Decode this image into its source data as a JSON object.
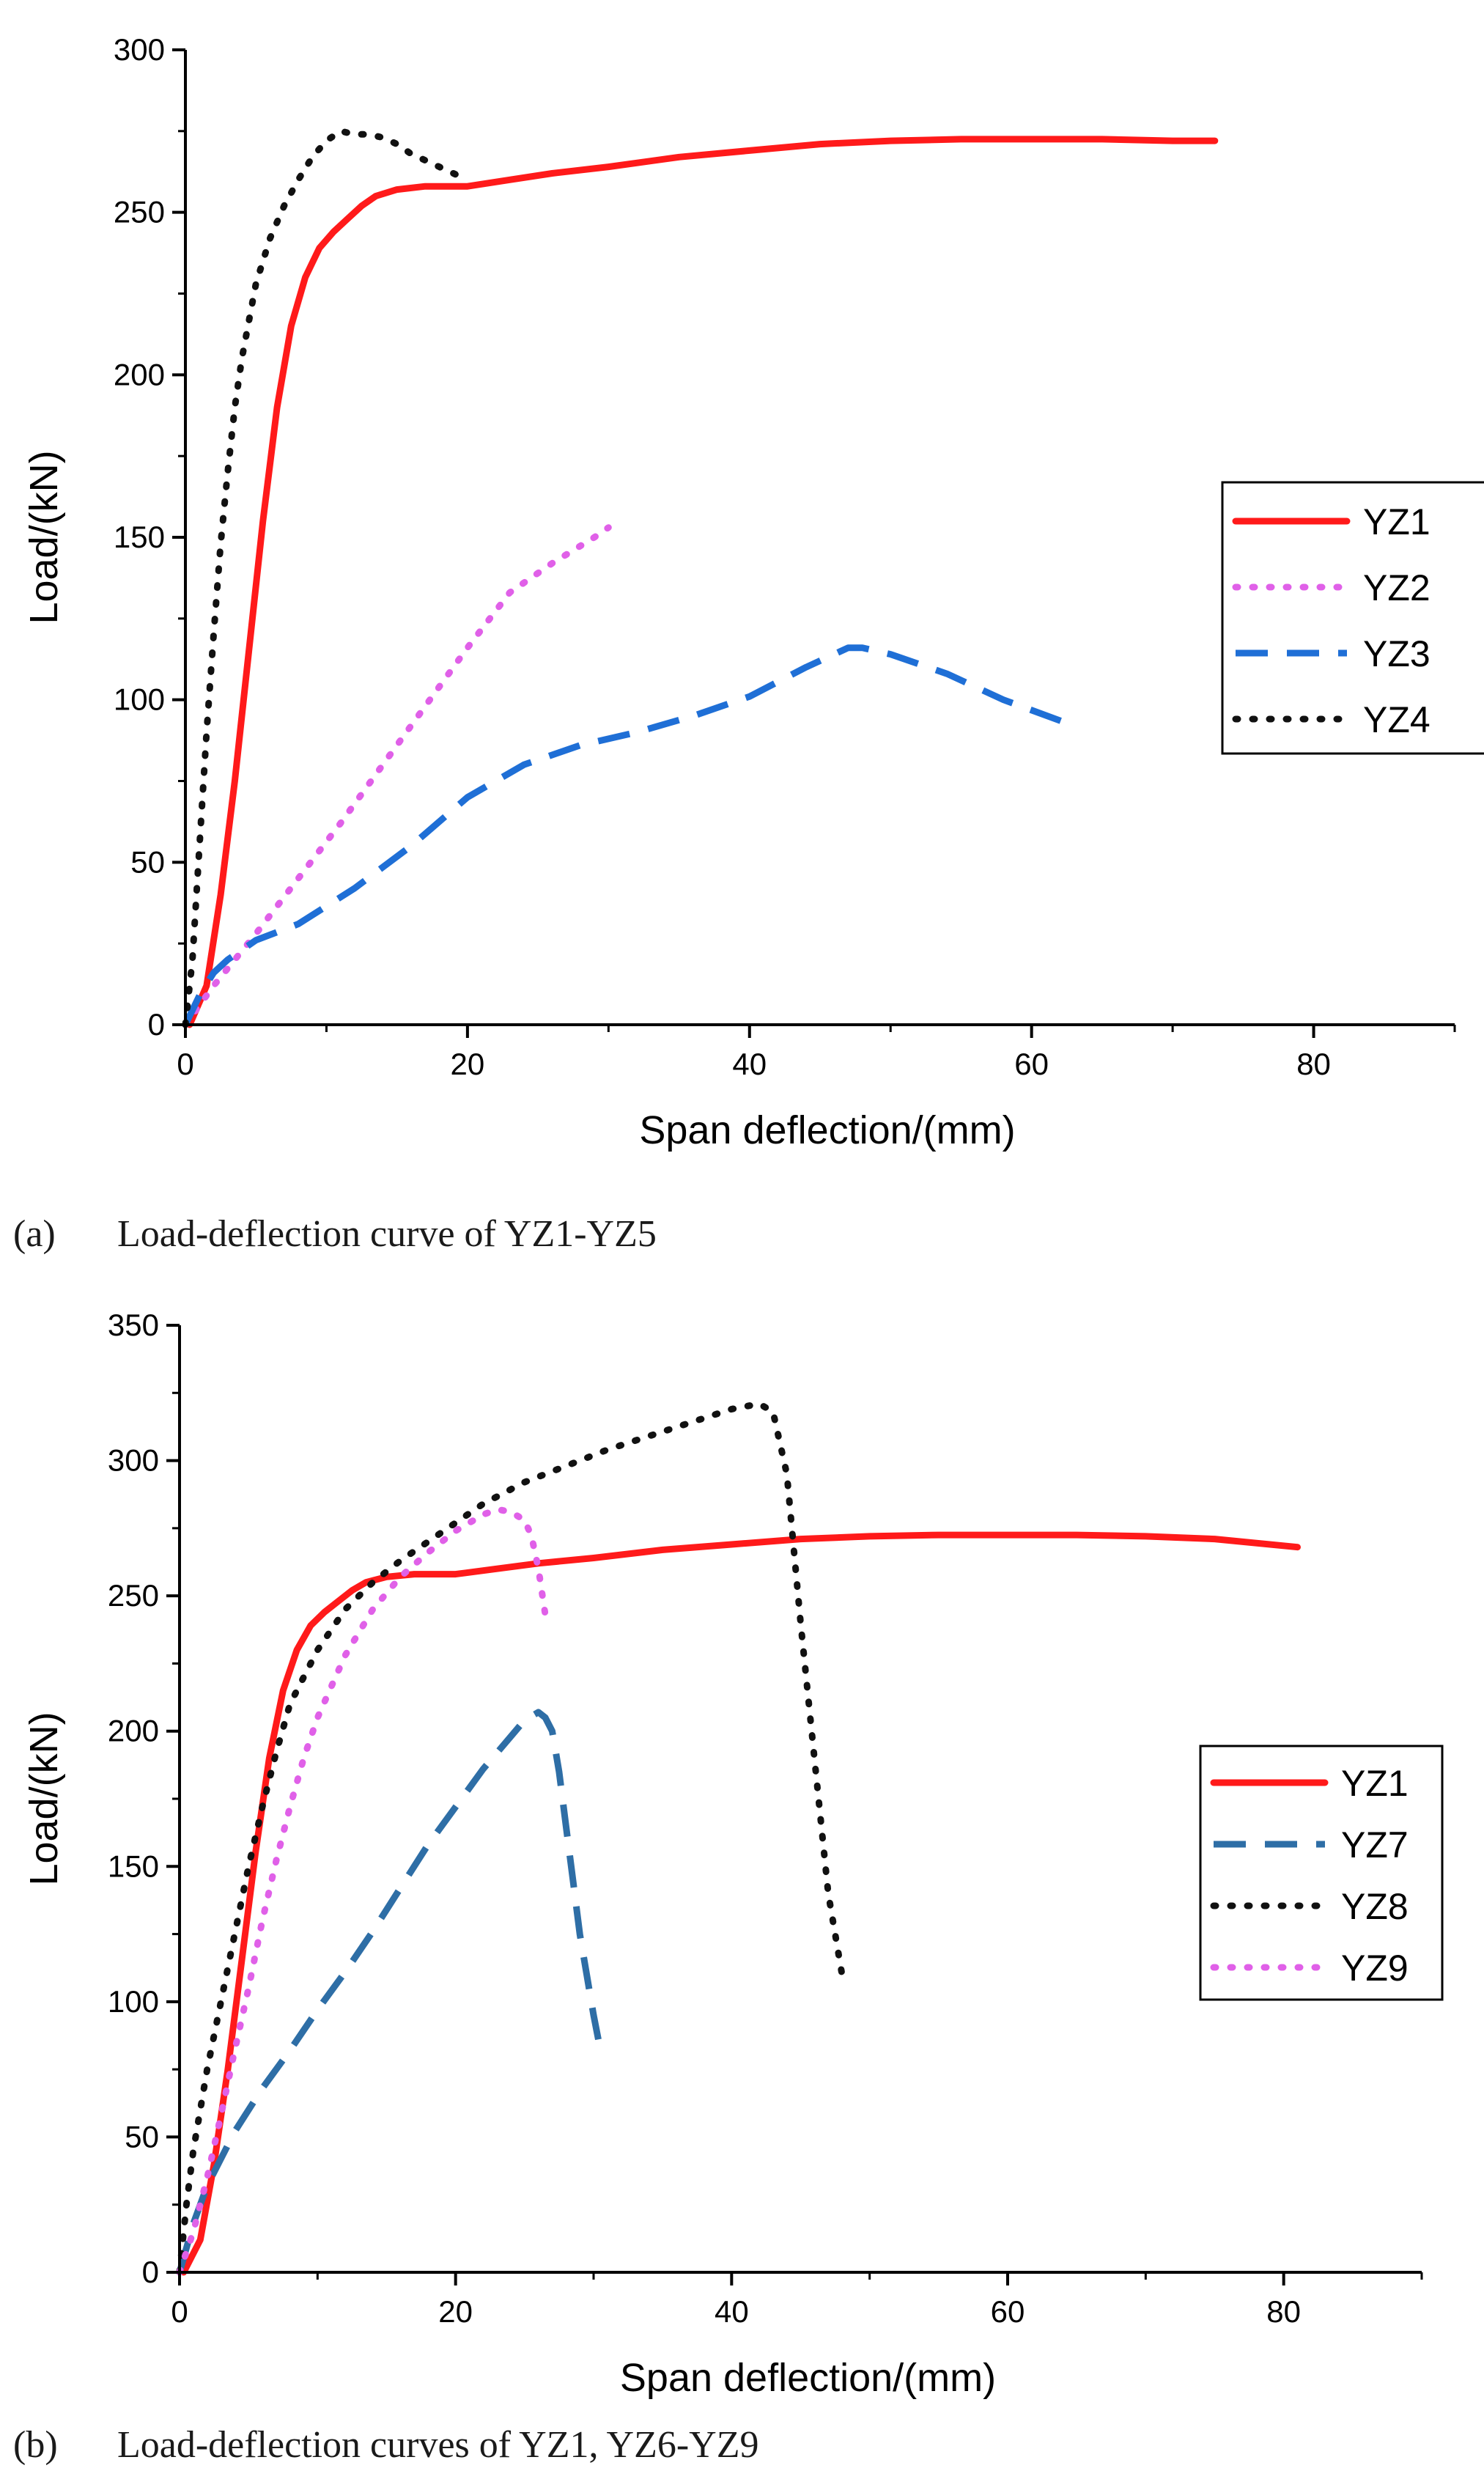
{
  "chart_data": [
    {
      "type": "line",
      "panel": "a",
      "caption_label": "(a)",
      "caption_text": "Load-deflection curve of YZ1-YZ5",
      "xlabel": "Span deflection/(mm)",
      "ylabel": "Load/(kN)",
      "xlim": [
        0,
        90
      ],
      "ylim": [
        0,
        300
      ],
      "xticks": [
        0,
        20,
        40,
        60,
        80
      ],
      "yticks": [
        0,
        50,
        100,
        150,
        200,
        250,
        300
      ],
      "legend_position": "right",
      "grid": false,
      "series": [
        {
          "name": "YZ1",
          "color": "#ff1a1a",
          "style": "solid",
          "x": [
            0.3,
            1.5,
            2.5,
            3.5,
            4.5,
            5.5,
            6.5,
            7.5,
            8.5,
            9.5,
            10.5,
            11.5,
            12.5,
            13.5,
            15,
            17,
            20,
            23,
            26,
            30,
            35,
            40,
            45,
            50,
            55,
            60,
            65,
            70,
            73
          ],
          "y": [
            0,
            12,
            40,
            75,
            115,
            155,
            190,
            215,
            230,
            239,
            244,
            248,
            252,
            255,
            257,
            258,
            258,
            260,
            262,
            264,
            267,
            269,
            271,
            272,
            272.5,
            272.5,
            272.5,
            272,
            272
          ]
        },
        {
          "name": "YZ2",
          "color": "#e060e8",
          "style": "dotted",
          "x": [
            0,
            2,
            5,
            8,
            11,
            14,
            17,
            20,
            23,
            26,
            29,
            30
          ],
          "y": [
            0,
            12,
            28,
            45,
            62,
            80,
            98,
            116,
            133,
            142,
            150,
            153
          ]
        },
        {
          "name": "YZ3",
          "color": "#1f6fd6",
          "style": "dashed",
          "x": [
            0,
            1,
            2,
            3,
            5,
            8,
            12,
            16,
            20,
            24,
            28,
            32,
            36,
            40,
            44,
            47,
            48,
            50,
            54,
            58,
            63
          ],
          "y": [
            0,
            9,
            16,
            20,
            26,
            31,
            42,
            55,
            70,
            80,
            86,
            90,
            95,
            101,
            110,
            116,
            116,
            114,
            108,
            100,
            92
          ]
        },
        {
          "name": "YZ4",
          "color": "#111111",
          "style": "dotted",
          "x": [
            0,
            0.5,
            1,
            1.5,
            2,
            2.5,
            3,
            3.5,
            4,
            5,
            6,
            7,
            8,
            9,
            10,
            11,
            12,
            13,
            14,
            15,
            16,
            17,
            18,
            19,
            20
          ],
          "y": [
            0,
            20,
            55,
            90,
            120,
            148,
            170,
            190,
            205,
            228,
            242,
            252,
            260,
            267,
            272,
            275,
            274,
            274,
            273,
            271,
            268,
            266,
            264,
            262,
            260
          ]
        }
      ]
    },
    {
      "type": "line",
      "panel": "b",
      "caption_label": "(b)",
      "caption_text": "Load-deflection curves of YZ1, YZ6-YZ9",
      "xlabel": "Span deflection/(mm)",
      "ylabel": "Load/(kN)",
      "xlim": [
        0,
        90
      ],
      "ylim": [
        0,
        350
      ],
      "xticks": [
        0,
        20,
        40,
        60,
        80
      ],
      "yticks": [
        0,
        50,
        100,
        150,
        200,
        250,
        300,
        350
      ],
      "legend_position": "right",
      "grid": false,
      "series": [
        {
          "name": "YZ1",
          "color": "#ff1a1a",
          "style": "solid",
          "x": [
            0.3,
            1.5,
            2.5,
            3.5,
            4.5,
            5.5,
            6.5,
            7.5,
            8.5,
            9.5,
            10.5,
            11.5,
            12.5,
            13.5,
            15,
            17,
            20,
            23,
            26,
            30,
            35,
            40,
            45,
            50,
            55,
            60,
            65,
            70,
            75,
            81
          ],
          "y": [
            0,
            12,
            40,
            75,
            115,
            155,
            190,
            215,
            230,
            239,
            244,
            248,
            252,
            255,
            257,
            258,
            258,
            260,
            262,
            264,
            267,
            269,
            271,
            272,
            272.5,
            272.5,
            272.5,
            272,
            271,
            268
          ]
        },
        {
          "name": "YZ7",
          "color": "#2e6ea6",
          "style": "dashed",
          "x": [
            0,
            1,
            2,
            3,
            4,
            6,
            8,
            10,
            12,
            14,
            16,
            18,
            20,
            22,
            24,
            25,
            26,
            26.5,
            27,
            27.5,
            28,
            28.5,
            29,
            29.5,
            30,
            30.5
          ],
          "y": [
            0,
            18,
            32,
            42,
            52,
            68,
            82,
            97,
            111,
            126,
            142,
            158,
            172,
            186,
            198,
            204,
            207,
            205,
            200,
            185,
            165,
            145,
            125,
            110,
            95,
            82
          ]
        },
        {
          "name": "YZ8",
          "color": "#111111",
          "style": "dotted",
          "x": [
            0,
            0.5,
            1,
            2,
            3,
            4,
            5,
            6,
            7,
            8,
            10,
            12,
            14,
            16,
            18,
            20,
            22,
            25,
            28,
            31,
            34,
            37,
            40,
            42,
            43,
            44,
            45,
            46,
            47,
            48
          ],
          "y": [
            0,
            25,
            45,
            75,
            100,
            125,
            150,
            172,
            192,
            210,
            230,
            245,
            255,
            263,
            270,
            277,
            284,
            292,
            298,
            304,
            309,
            314,
            319,
            321,
            318,
            295,
            240,
            190,
            140,
            110
          ]
        },
        {
          "name": "YZ9",
          "color": "#e060e8",
          "style": "dotted",
          "x": [
            0,
            1,
            2,
            3,
            4,
            5,
            6,
            7,
            8,
            9,
            10,
            12,
            14,
            16,
            18,
            20,
            22,
            23,
            24,
            25,
            25.5,
            26,
            26.5
          ],
          "y": [
            0,
            15,
            35,
            58,
            82,
            105,
            130,
            152,
            172,
            190,
            205,
            228,
            245,
            257,
            266,
            274,
            280,
            282,
            281,
            278,
            272,
            260,
            243
          ]
        }
      ]
    }
  ]
}
